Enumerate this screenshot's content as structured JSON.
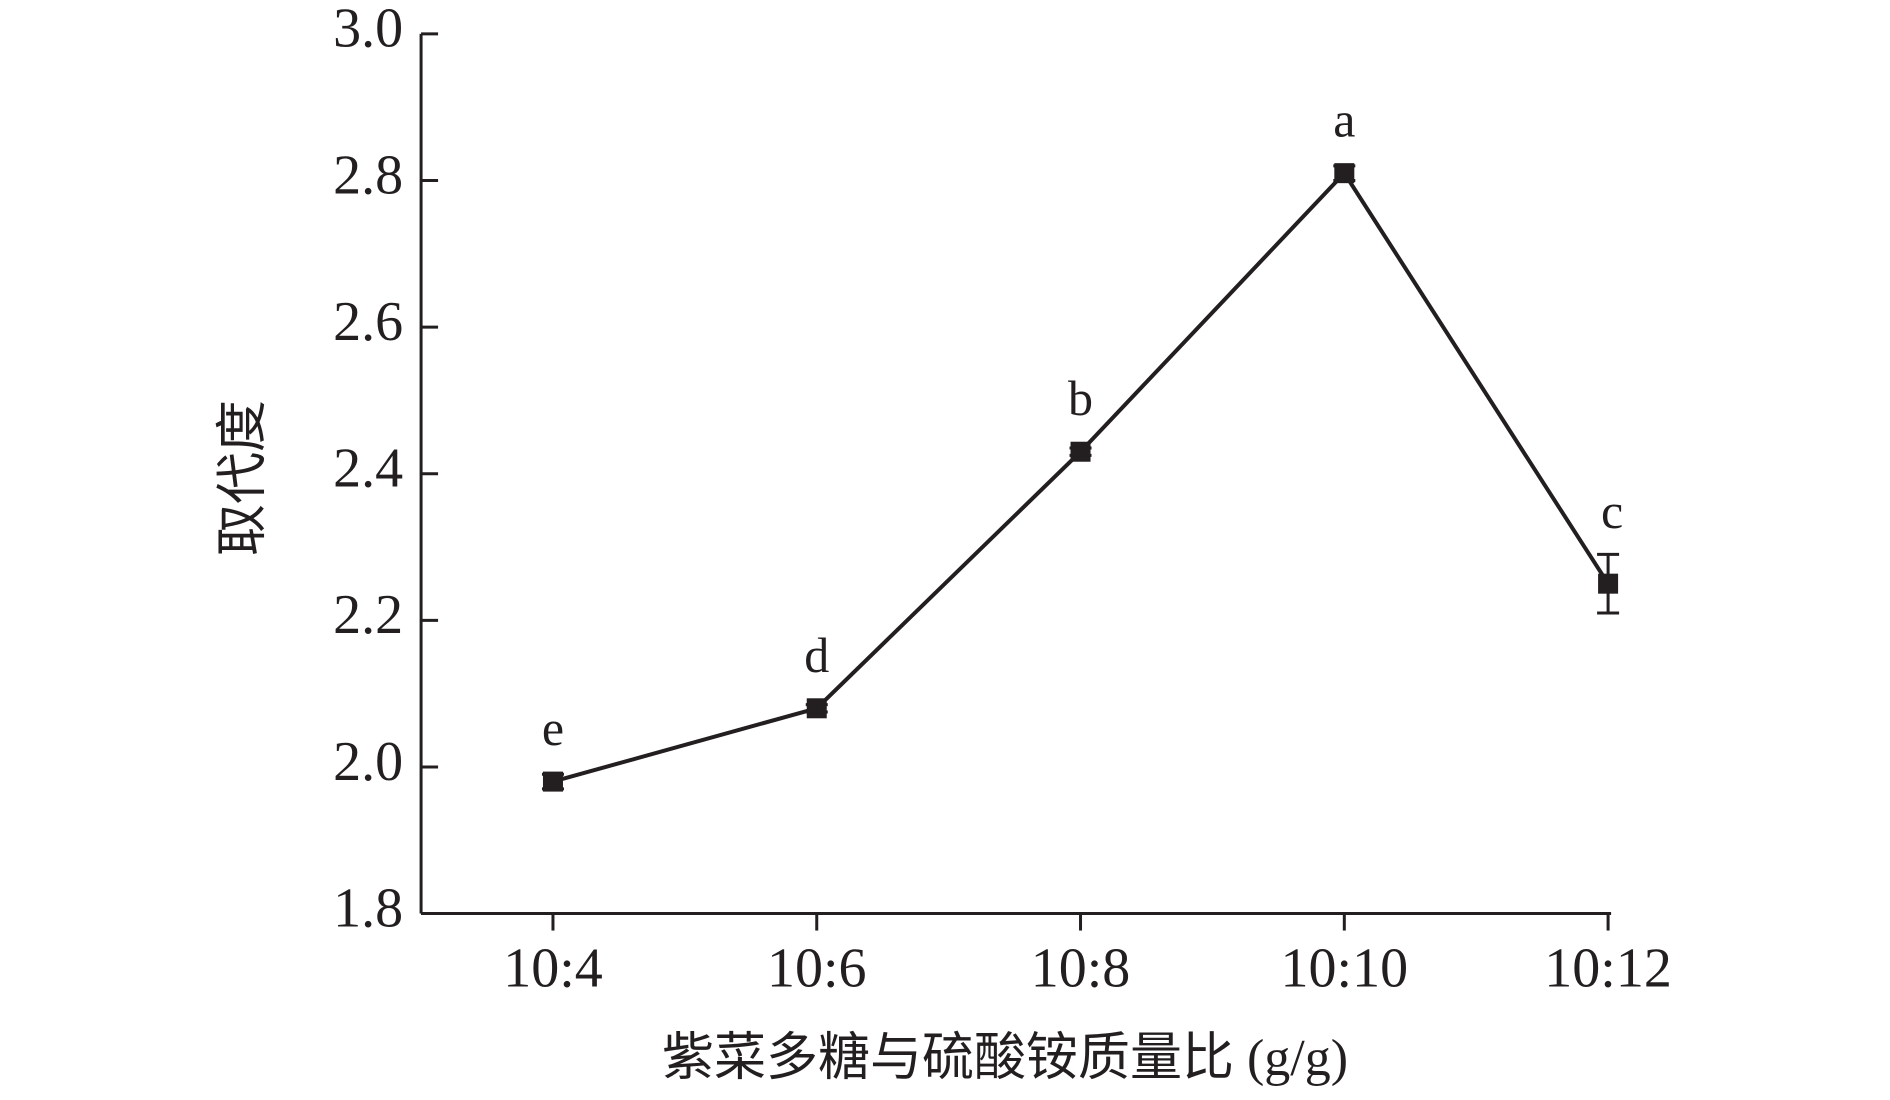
{
  "chart_data": {
    "type": "line",
    "x_label": "紫菜多糖与硫酸铵质量比 (g/g)",
    "y_label": "取代度",
    "categories": [
      "10:4",
      "10:6",
      "10:8",
      "10:10",
      "10:12"
    ],
    "series": [
      {
        "color": "#231f20",
        "values": [
          1.98,
          2.08,
          2.43,
          2.81,
          2.25
        ],
        "errors": [
          0.01,
          0.005,
          0.005,
          0.01,
          0.04
        ],
        "annotations": [
          "e",
          "d",
          "b",
          "a",
          "c"
        ]
      }
    ],
    "ylim": [
      1.8,
      3.0
    ],
    "yticks": [
      {
        "value": 1.8,
        "label": "1.8"
      },
      {
        "value": 2.0,
        "label": "2.0"
      },
      {
        "value": 2.2,
        "label": "2.2"
      },
      {
        "value": 2.4,
        "label": "2.4"
      },
      {
        "value": 2.6,
        "label": "2.6"
      },
      {
        "value": 2.8,
        "label": "2.8"
      },
      {
        "value": 3.0,
        "label": "3.0"
      }
    ],
    "grid": false
  }
}
